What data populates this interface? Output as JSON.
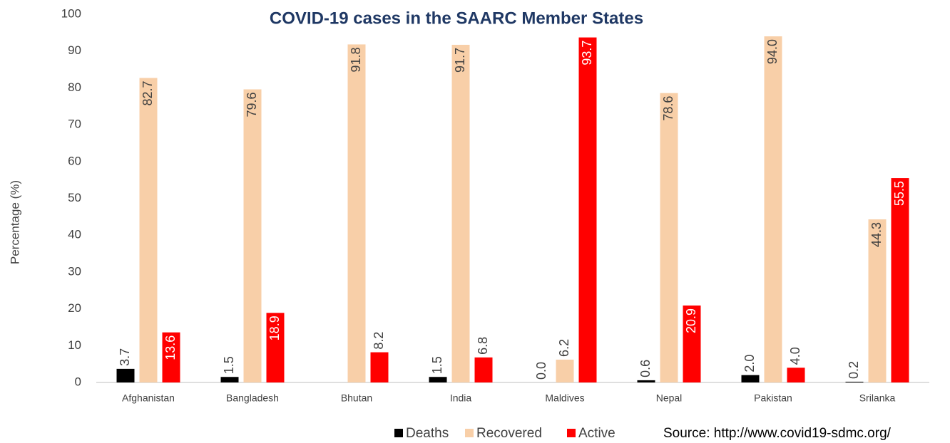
{
  "chart_data": {
    "type": "bar",
    "title": "COVID-19 cases in the SAARC Member States",
    "y_label": "Percentage (%)",
    "source": "Source:  http://www.covid19-sdmc.org/",
    "categories": [
      "Afghanistan",
      "Bangladesh",
      "Bhutan",
      "India",
      "Maldives",
      "Nepal",
      "Pakistan",
      "Srilanka"
    ],
    "series": [
      {
        "name": "Deaths",
        "color": "#000000",
        "label_color": "#404040",
        "values": [
          3.7,
          1.5,
          null,
          1.5,
          0.0,
          0.6,
          2.0,
          0.2
        ],
        "value_labels": [
          "3.7",
          "1.5",
          null,
          "1.5",
          "0.0",
          "0.6",
          "2.0",
          "0.2"
        ]
      },
      {
        "name": "Recovered",
        "color": "#f8cfa8",
        "label_color": "#404040",
        "values": [
          82.7,
          79.6,
          91.8,
          91.7,
          6.2,
          78.6,
          94.0,
          44.3
        ],
        "value_labels": [
          "82.7",
          "79.6",
          "91.8",
          "91.7",
          "6.2",
          "78.6",
          "94.0",
          "44.3"
        ]
      },
      {
        "name": "Active",
        "color": "#ff0000",
        "label_color": "#ffffff",
        "values": [
          13.6,
          18.9,
          8.2,
          6.8,
          93.7,
          20.9,
          4.0,
          55.5
        ],
        "value_labels": [
          "13.6",
          "18.9",
          "8.2",
          "6.8",
          "93.7",
          "20.9",
          "4.0",
          "55.5"
        ]
      }
    ],
    "ylim": [
      0,
      100
    ],
    "yticks": [
      0,
      10,
      20,
      30,
      40,
      50,
      60,
      70,
      80,
      90,
      100
    ],
    "grid": false,
    "legend": "bottom"
  }
}
